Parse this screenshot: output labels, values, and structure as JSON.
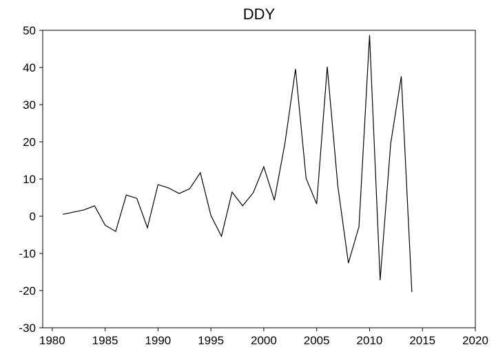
{
  "chart_data": {
    "type": "line",
    "title": "DDY",
    "x": [
      1981,
      1982,
      1983,
      1984,
      1985,
      1986,
      1987,
      1988,
      1989,
      1990,
      1991,
      1992,
      1993,
      1994,
      1995,
      1996,
      1997,
      1998,
      1999,
      2000,
      2001,
      2002,
      2003,
      2004,
      2005,
      2006,
      2007,
      2008,
      2009,
      2010,
      2011,
      2012,
      2013,
      2014
    ],
    "series": [
      {
        "name": "DDY",
        "color": "#000000",
        "values": [
          0.5,
          1.1,
          1.7,
          2.8,
          -2.4,
          -4.1,
          5.7,
          4.8,
          -3.1,
          8.5,
          7.6,
          6.1,
          7.4,
          11.7,
          0.2,
          -5.4,
          6.5,
          2.8,
          6.3,
          13.3,
          4.3,
          19.6,
          39.6,
          10.2,
          3.3,
          40.2,
          8.1,
          -12.6,
          -2.8,
          48.7,
          -17.2,
          19.6,
          37.6,
          -20.4
        ]
      }
    ],
    "xlim": [
      1979.1,
      2020
    ],
    "xticks": [
      1980,
      1985,
      1990,
      1995,
      2000,
      2005,
      2010,
      2015,
      2020
    ],
    "ylim": [
      -30,
      50
    ],
    "yticks": [
      -30,
      -20,
      -10,
      0,
      10,
      20,
      30,
      40,
      50
    ]
  }
}
